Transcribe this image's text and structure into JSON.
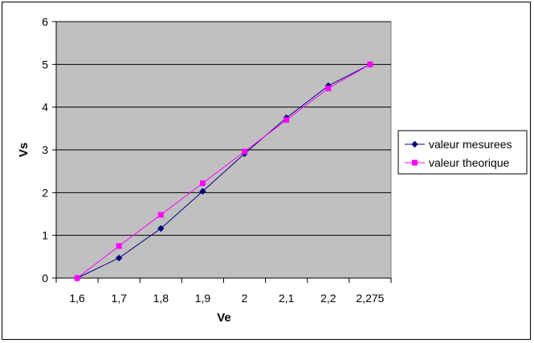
{
  "chart_data": {
    "type": "line",
    "title": "",
    "xlabel": "Ve",
    "ylabel": "Vs",
    "categories": [
      "1,6",
      "1,7",
      "1,8",
      "1,9",
      "2",
      "2,1",
      "2,2",
      "2,275"
    ],
    "ylim": [
      0,
      6
    ],
    "yticks": [
      "0",
      "1",
      "2",
      "3",
      "4",
      "5",
      "6"
    ],
    "grid": true,
    "legend_position": "right",
    "plot_background": "#c0c0c0",
    "series": [
      {
        "name": "valeur mesurees",
        "color": "#000080",
        "marker": "diamond",
        "values": [
          0.0,
          0.47,
          1.16,
          2.03,
          2.91,
          3.75,
          4.5,
          5.0
        ]
      },
      {
        "name": "valeur theorique",
        "color": "#ff00ff",
        "marker": "square",
        "values": [
          0.0,
          0.75,
          1.48,
          2.22,
          2.96,
          3.7,
          4.44,
          5.0
        ]
      }
    ]
  }
}
